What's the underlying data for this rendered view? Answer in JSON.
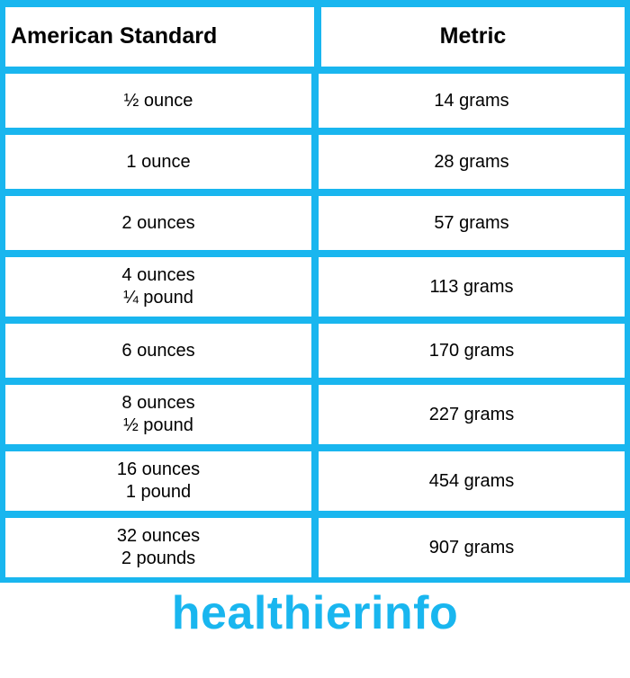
{
  "table": {
    "border_color": "#19b6ef",
    "cell_bg": "#ffffff",
    "text_color": "#000000",
    "header_fontsize": 25,
    "data_fontsize": 20,
    "columns": [
      "American Standard",
      "Metric"
    ],
    "rows": [
      {
        "american": [
          "½ ounce"
        ],
        "metric": "14 grams"
      },
      {
        "american": [
          "1 ounce"
        ],
        "metric": "28 grams"
      },
      {
        "american": [
          "2 ounces"
        ],
        "metric": "57 grams"
      },
      {
        "american": [
          "4 ounces",
          "¼ pound"
        ],
        "metric": "113 grams"
      },
      {
        "american": [
          "6 ounces"
        ],
        "metric": "170 grams"
      },
      {
        "american": [
          "8 ounces",
          "½ pound"
        ],
        "metric": "227 grams"
      },
      {
        "american": [
          "16 ounces",
          "1 pound"
        ],
        "metric": "454 grams"
      },
      {
        "american": [
          "32 ounces",
          "2 pounds"
        ],
        "metric": "907 grams"
      }
    ]
  },
  "footer": {
    "text": "healthierinfo",
    "color": "#19b6ef",
    "fontsize": 52
  }
}
